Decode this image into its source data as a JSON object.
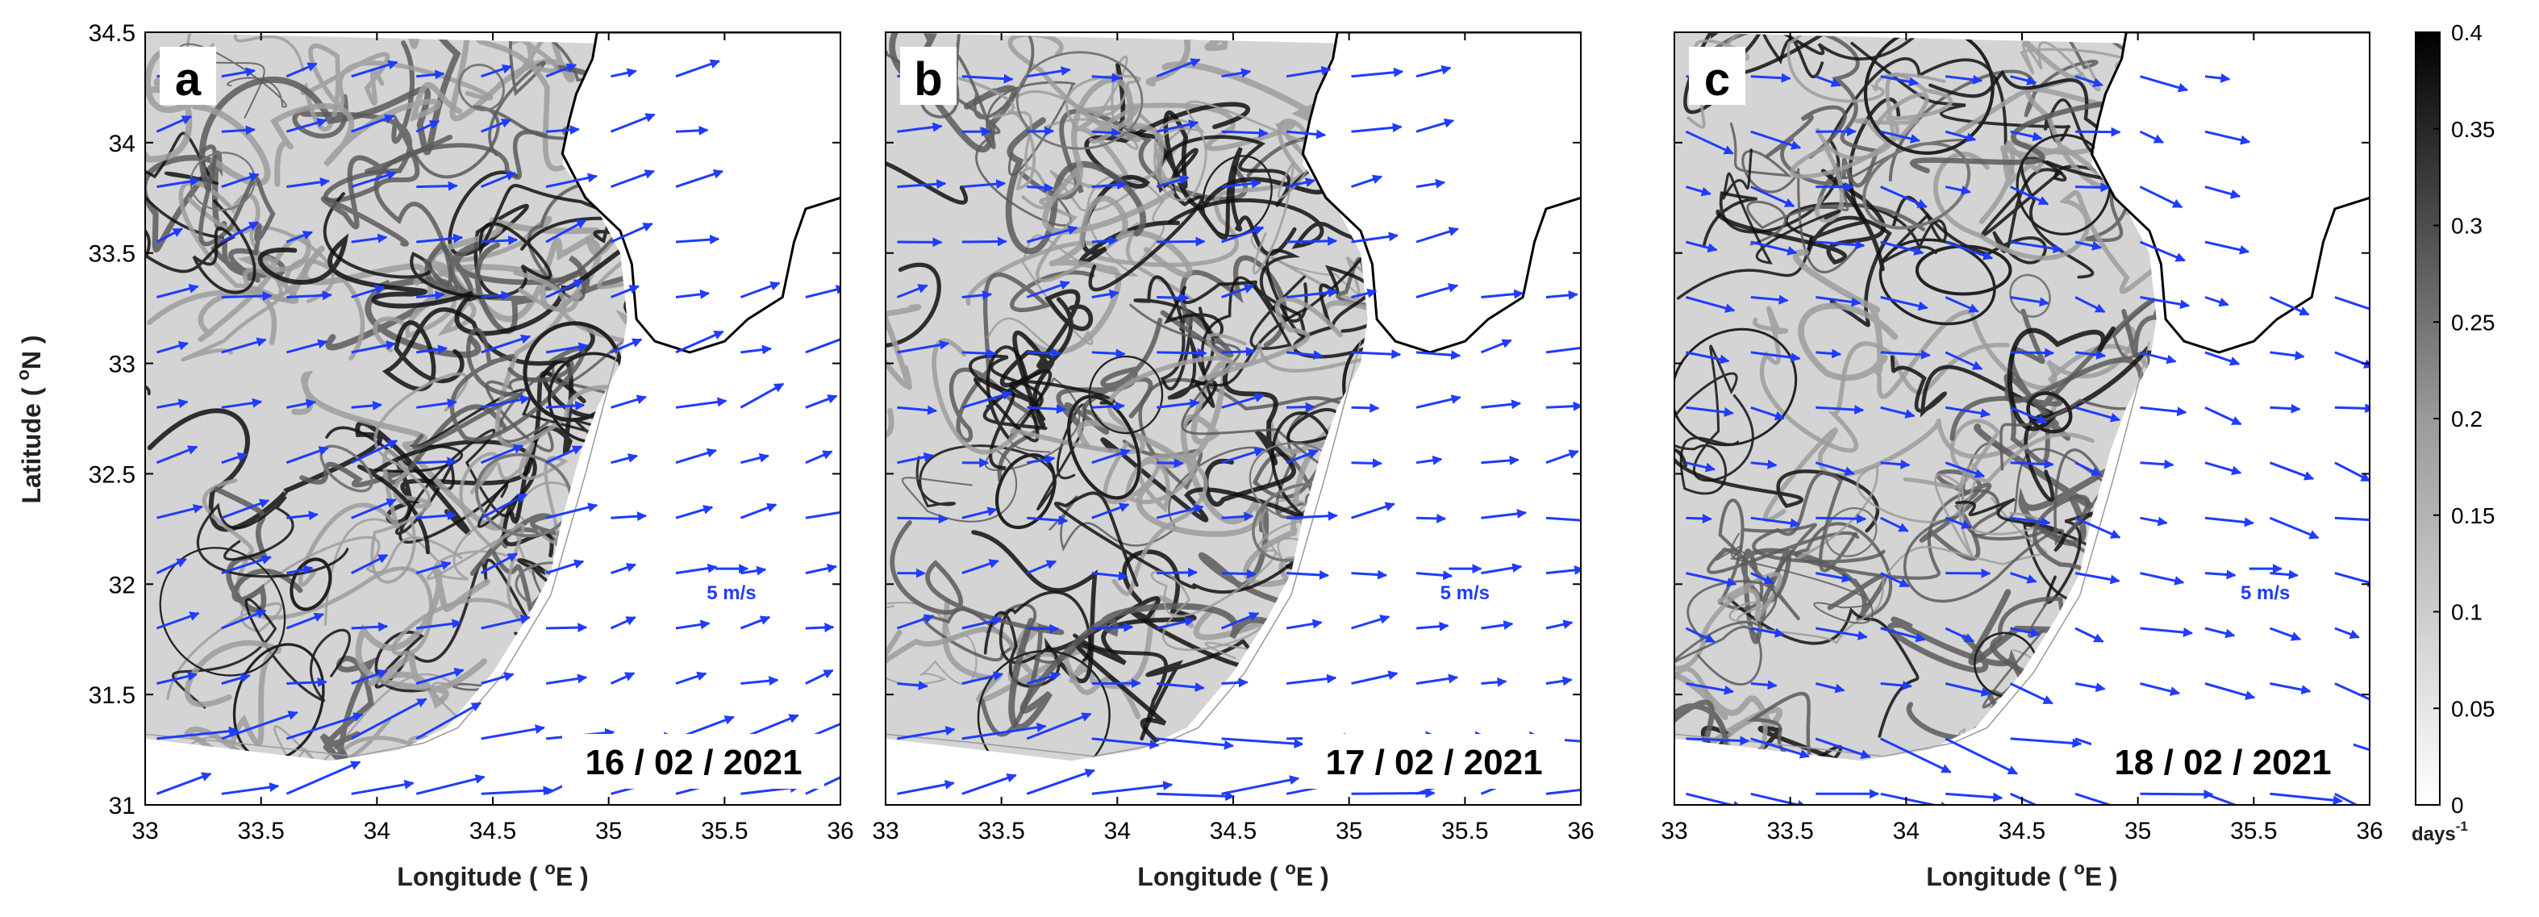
{
  "figure": {
    "ylabel_main": "Latitude ( ",
    "ylabel_sup": "o",
    "ylabel_end": "N )",
    "xlabel_main": "Longitude ( ",
    "xlabel_sup": "o",
    "xlabel_end": "E )",
    "colorbar": {
      "unit_main": "days",
      "unit_sup": "-1",
      "range": [
        0,
        0.4
      ],
      "ticks": [
        "0",
        "0.05",
        "0.1",
        "0.15",
        "0.2",
        "0.25",
        "0.3",
        "0.35",
        "0.4"
      ],
      "colormap": "white-to-black grayscale"
    },
    "colors": {
      "arrows": "#1f3cff",
      "coastline": "#000000",
      "field_light": "#d4d4d4",
      "field_dark": "#111111"
    }
  },
  "chart_data": [
    {
      "type": "heatmap",
      "panel_label": "a",
      "date": "16 / 02 / 2021",
      "xlim": [
        33,
        36
      ],
      "ylim": [
        31,
        34.5
      ],
      "x_ticks": [
        "33",
        "33.5",
        "34",
        "34.5",
        "35",
        "35.5",
        "36"
      ],
      "y_ticks": [
        "31",
        "31.5",
        "32",
        "32.5",
        "33",
        "33.5",
        "34",
        "34.5"
      ],
      "arrow_scale_label": "5 m/s",
      "arrow_scale_position": [
        35.53,
        32.07
      ],
      "arrow_direction_deg": 15
    },
    {
      "type": "heatmap",
      "panel_label": "b",
      "date": "17 / 02 / 2021",
      "xlim": [
        33,
        36
      ],
      "ylim": [
        31,
        34.5
      ],
      "x_ticks": [
        "33",
        "33.5",
        "34",
        "34.5",
        "35",
        "35.5",
        "36"
      ],
      "y_ticks": [],
      "arrow_scale_label": "5 m/s",
      "arrow_scale_position": [
        35.5,
        32.07
      ],
      "arrow_direction_deg": 8
    },
    {
      "type": "heatmap",
      "panel_label": "c",
      "date": "18 / 02 / 2021",
      "xlim": [
        33,
        36
      ],
      "ylim": [
        31,
        34.5
      ],
      "x_ticks": [
        "33",
        "33.5",
        "34",
        "34.5",
        "35",
        "35.5",
        "36"
      ],
      "y_ticks": [],
      "arrow_scale_label": "5 m/s",
      "arrow_scale_position": [
        35.55,
        32.07
      ],
      "arrow_direction_deg": -14
    }
  ]
}
